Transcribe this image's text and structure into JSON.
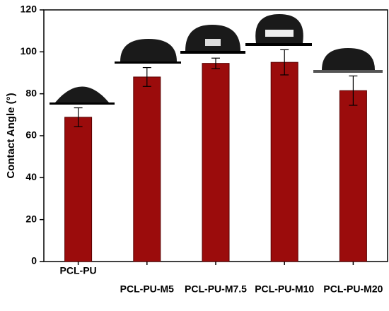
{
  "chart_data": {
    "type": "bar",
    "y_label": "Contact Angle (°)",
    "categories": [
      "PCL-PU",
      "PCL-PU-M5",
      "PCL-PU-M7.5",
      "PCL-PU-M10",
      "PCL-PU-M20"
    ],
    "values": [
      68.8,
      88,
      94.5,
      95,
      81.5
    ],
    "errors": [
      4.5,
      4.5,
      2.5,
      6,
      7
    ],
    "color": "#9b0c0c",
    "ylim": [
      0,
      120
    ],
    "yticks": [
      0,
      20,
      40,
      60,
      80,
      100,
      120
    ]
  }
}
